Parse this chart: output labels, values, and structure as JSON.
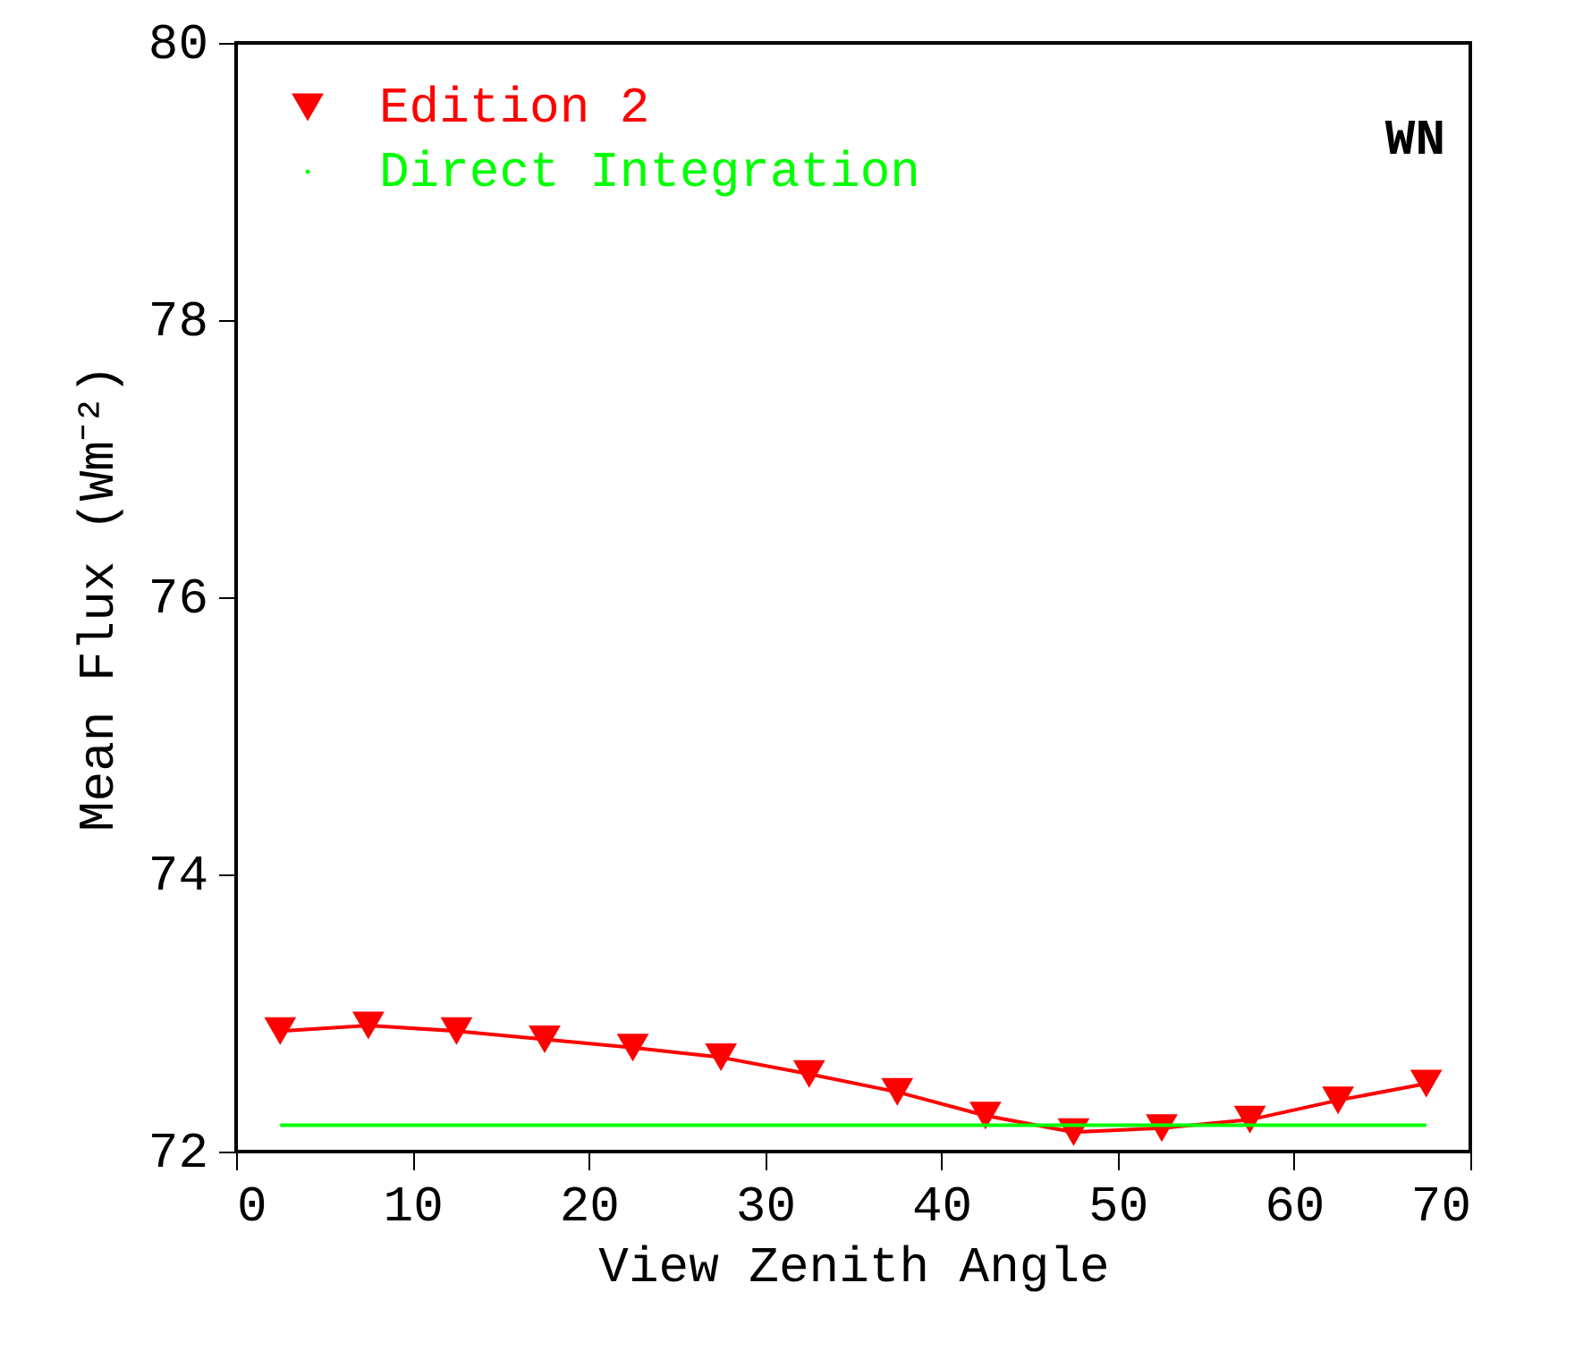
{
  "chart_data": {
    "type": "line",
    "xlabel": "View Zenith Angle",
    "ylabel": "Mean Flux (Wm⁻²)",
    "x": [
      2.5,
      7.5,
      12.5,
      17.5,
      22.5,
      27.5,
      32.5,
      37.5,
      42.5,
      47.5,
      52.5,
      57.5,
      62.5,
      67.5
    ],
    "series": [
      {
        "name": "Edition 2",
        "color": "#ff0000",
        "marker": "triangle",
        "values": [
          72.87,
          72.91,
          72.87,
          72.81,
          72.75,
          72.68,
          72.56,
          72.43,
          72.26,
          72.14,
          72.17,
          72.23,
          72.37,
          72.49
        ]
      },
      {
        "name": "Direct Integration",
        "color": "#00ff00",
        "marker": "none",
        "values": [
          72.19,
          72.19,
          72.19,
          72.19,
          72.19,
          72.19,
          72.19,
          72.19,
          72.19,
          72.19,
          72.19,
          72.19,
          72.19,
          72.19
        ]
      }
    ],
    "xlim": [
      0,
      70
    ],
    "xticks": [
      0,
      10,
      20,
      30,
      40,
      50,
      60,
      70
    ],
    "ylim": [
      72,
      80
    ],
    "yticks": [
      72,
      74,
      76,
      78,
      80
    ],
    "annotations": [
      "WN"
    ],
    "legend": "top left",
    "grid": false
  }
}
